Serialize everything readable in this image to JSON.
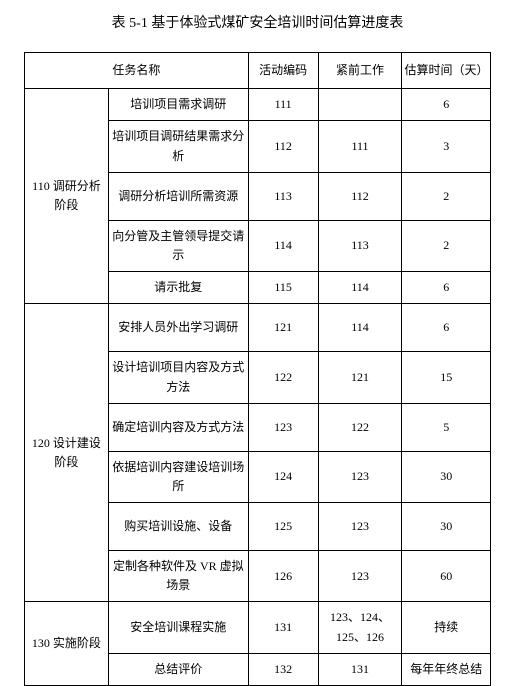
{
  "title": "表 5-1 基于体验式煤矿安全培训时间估算进度表",
  "headers": {
    "name": "任务名称",
    "code": "活动编码",
    "pre": "紧前工作",
    "est": "估算时间（天）"
  },
  "phases": [
    {
      "phase": "110 调研分析阶段",
      "rows": [
        {
          "task": "培训项目需求调研",
          "code": "111",
          "pre": "",
          "est": "6"
        },
        {
          "task": "培训项目调研结果需求分析",
          "code": "112",
          "pre": "111",
          "est": "3"
        },
        {
          "task": "调研分析培训所需资源",
          "code": "113",
          "pre": "112",
          "est": "2"
        },
        {
          "task": "向分管及主管领导提交请示",
          "code": "114",
          "pre": "113",
          "est": "2"
        },
        {
          "task": "请示批复",
          "code": "115",
          "pre": "114",
          "est": "6"
        }
      ]
    },
    {
      "phase": "120 设计建设阶段",
      "rows": [
        {
          "task": "安排人员外出学习调研",
          "code": "121",
          "pre": "114",
          "est": "6"
        },
        {
          "task": "设计培训项目内容及方式方法",
          "code": "122",
          "pre": "121",
          "est": "15"
        },
        {
          "task": "确定培训内容及方式方法",
          "code": "123",
          "pre": "122",
          "est": "5"
        },
        {
          "task": "依据培训内容建设培训场所",
          "code": "124",
          "pre": "123",
          "est": "30"
        },
        {
          "task": "购买培训设施、设备",
          "code": "125",
          "pre": "123",
          "est": "30"
        },
        {
          "task": "定制各种软件及 VR 虚拟场景",
          "code": "126",
          "pre": "123",
          "est": "60"
        }
      ]
    },
    {
      "phase": "130 实施阶段",
      "rows": [
        {
          "task": "安全培训课程实施",
          "code": "131",
          "pre": "123、124、125、126",
          "est": "持续"
        },
        {
          "task": "总结评价",
          "code": "132",
          "pre": "131",
          "est": "每年年终总结"
        }
      ]
    }
  ]
}
